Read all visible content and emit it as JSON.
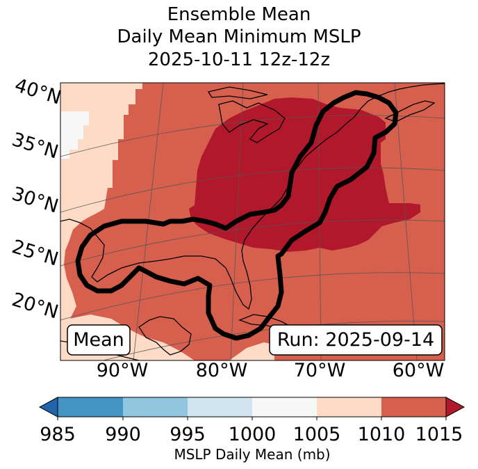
{
  "title": {
    "line1": "Ensemble Mean",
    "line2": "Daily Mean Minimum MSLP",
    "line3": "2025-10-11 12z-12z"
  },
  "map": {
    "lat_labels": [
      "40°N",
      "35°N",
      "30°N",
      "25°N",
      "20°N"
    ],
    "lon_labels": [
      "90°W",
      "80°W",
      "70°W",
      "60°W"
    ],
    "mean_box": "Mean",
    "run_box": "Run: 2025-09-14",
    "contour_color": "#000000",
    "region_colors": {
      "lt_1000": "#f7f7f7",
      "r1005_1010": "#fddbc7",
      "r1010_1015": "#d6604d",
      "gt_1015": "#b2182b"
    }
  },
  "colorbar": {
    "label": "MSLP Daily Mean (mb)",
    "ticks": [
      "985",
      "990",
      "995",
      "1000",
      "1005",
      "1010",
      "1015"
    ],
    "colors": [
      "#2166ac",
      "#4393c3",
      "#92c5de",
      "#d1e5f0",
      "#f7f7f7",
      "#fddbc7",
      "#d6604d",
      "#b2182b"
    ]
  }
}
